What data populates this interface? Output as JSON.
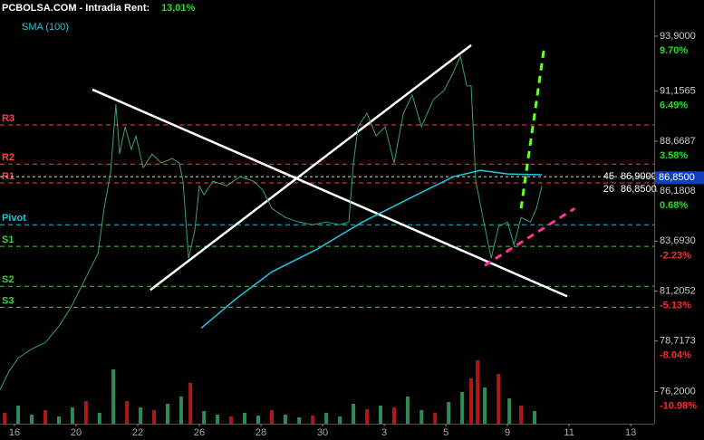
{
  "chart_data": {
    "type": "line",
    "title": "PCBOLSA.COM - Intradia  Rent:",
    "return": "13,01%",
    "xlim": [
      -0.47,
      20.76
    ],
    "xticks": [
      {
        "value": 0,
        "label": "16"
      },
      {
        "value": 2,
        "label": "20"
      },
      {
        "value": 4,
        "label": "22"
      },
      {
        "value": 6,
        "label": "26"
      },
      {
        "value": 8,
        "label": "28"
      },
      {
        "value": 10,
        "label": "30"
      },
      {
        "value": 12,
        "label": "3"
      },
      {
        "value": 14,
        "label": "5"
      },
      {
        "value": 16,
        "label": "9"
      },
      {
        "value": 18,
        "label": "11"
      },
      {
        "value": 20,
        "label": "13"
      }
    ],
    "ylim": [
      74.6,
      95.7
    ],
    "yticks": [
      {
        "value": 93.9,
        "label": "93,9000"
      },
      {
        "value": 91.1565,
        "label": "91,1565"
      },
      {
        "value": 88.6687,
        "label": "88,6687"
      },
      {
        "value": 86.1808,
        "label": "86,1808"
      },
      {
        "value": 83.693,
        "label": "83,6930"
      },
      {
        "value": 81.2052,
        "label": "81,2052"
      },
      {
        "value": 78.7173,
        "label": "78,7173"
      },
      {
        "value": 76.2,
        "label": "76,2000"
      }
    ],
    "y2lim": [
      -12.85,
      11.8
    ],
    "y2ticks": [
      {
        "value": 9.7,
        "label": "9.70%"
      },
      {
        "value": 6.49,
        "label": "6.49%"
      },
      {
        "value": 3.58,
        "label": "3.58%"
      },
      {
        "value": 0.68,
        "label": "0.68%"
      },
      {
        "value": -2.23,
        "label": "-2.23%"
      },
      {
        "value": -5.13,
        "label": "-5.13%"
      },
      {
        "value": -8.04,
        "label": "-8.04%"
      },
      {
        "value": -10.98,
        "label": "-10.98%"
      }
    ],
    "positive_color": "#22dd22",
    "negative_color": "#ff2a2a",
    "series": [
      {
        "color": "#3aa070",
        "x": [
          -0.47,
          -0.18,
          0.12,
          0.56,
          1.0,
          1.44,
          1.82,
          2.12,
          2.41,
          2.71,
          2.91,
          3.12,
          3.29,
          3.41,
          3.59,
          3.79,
          3.94,
          4.18,
          4.47,
          4.76,
          5.12,
          5.35,
          5.47,
          5.65,
          5.85,
          6.0,
          6.15,
          6.44,
          6.88,
          7.32,
          7.76,
          8.06,
          8.35,
          8.79,
          9.24,
          9.68,
          10.12,
          10.56,
          10.85,
          11.0,
          11.15,
          11.44,
          11.74,
          12.03,
          12.32,
          12.62,
          12.91,
          13.21,
          13.59,
          13.94,
          14.24,
          14.47,
          14.68,
          14.82,
          14.97,
          15.26,
          15.47,
          15.71,
          16.0,
          16.21,
          16.44,
          16.74,
          16.94,
          17.12
        ],
        "values": [
          76.29,
          77.2,
          77.87,
          78.32,
          78.64,
          79.45,
          80.36,
          81.26,
          82.16,
          83.06,
          85.32,
          87.13,
          90.51,
          88.03,
          89.39,
          88.26,
          88.93,
          87.35,
          88.03,
          87.58,
          87.81,
          87.58,
          86.68,
          82.84,
          84.19,
          86.45,
          86.0,
          86.68,
          86.45,
          86.9,
          86.68,
          86.23,
          85.32,
          84.87,
          84.64,
          84.51,
          84.64,
          84.51,
          84.64,
          87.58,
          89.39,
          90.06,
          88.93,
          89.39,
          87.58,
          90.06,
          90.97,
          89.39,
          90.74,
          91.19,
          92.09,
          92.91,
          91.42,
          91.42,
          86.68,
          84.42,
          82.84,
          84.42,
          84.64,
          83.52,
          84.87,
          84.64,
          85.32,
          86.45
        ]
      },
      {
        "name": "SMA (100)",
        "color": "#20c8e0",
        "x": [
          6.06,
          7.18,
          8.35,
          9.82,
          11.29,
          13.06,
          14.24,
          15.12,
          16.0,
          17.12
        ],
        "values": [
          79.36,
          80.81,
          82.16,
          83.29,
          84.64,
          86.0,
          86.9,
          87.22,
          87.04,
          87.0
        ]
      }
    ],
    "last_price": {
      "value": 86.85,
      "label": "86,8500",
      "color": "#1040c0"
    },
    "order_book": [
      {
        "size": "45",
        "price": "86,9000",
        "value": 86.9
      },
      {
        "size": "26",
        "price": "86,8500",
        "value": 86.85
      }
    ],
    "levels": [
      {
        "label": "R3",
        "value": 89.48,
        "color": "#ff4040"
      },
      {
        "label": "R2",
        "value": 87.53,
        "color": "#ff4040"
      },
      {
        "label": "R1",
        "value": 86.59,
        "color": "#ff4040"
      },
      {
        "label": "Pivot",
        "value": 84.51,
        "color": "#10c8e0"
      },
      {
        "label": "S1",
        "value": 83.43,
        "color": "#40d040"
      },
      {
        "label": "S2",
        "value": 81.44,
        "color": "#40d040"
      },
      {
        "label": "S3",
        "value": 80.4,
        "color": "#40d040"
      }
    ],
    "trendlines": [
      {
        "x": [
          2.53,
          17.94
        ],
        "y": [
          91.24,
          80.94
        ],
        "color": "#ffffff",
        "dashed": false
      },
      {
        "x": [
          4.41,
          14.82
        ],
        "y": [
          81.26,
          93.45
        ],
        "color": "#ffffff",
        "dashed": false
      },
      {
        "x": [
          16.44,
          17.18
        ],
        "y": [
          85.32,
          93.22
        ],
        "color": "#66ff33",
        "dashed": true
      },
      {
        "x": [
          15.26,
          18.18
        ],
        "y": [
          82.48,
          85.32
        ],
        "color": "#ff3399",
        "dashed": true
      }
    ],
    "volume": {
      "ylim": [
        0,
        100
      ],
      "x": [
        -0.32,
        0.12,
        0.56,
        1.0,
        1.44,
        1.88,
        2.32,
        2.76,
        3.21,
        3.65,
        4.09,
        4.53,
        4.97,
        5.41,
        5.71,
        6.15,
        6.59,
        7.03,
        7.47,
        7.91,
        8.35,
        8.79,
        9.24,
        9.68,
        10.12,
        10.56,
        11.0,
        11.44,
        11.88,
        12.32,
        12.76,
        13.21,
        13.65,
        14.09,
        14.53,
        14.82,
        15.03,
        15.26,
        15.71,
        16.06,
        16.44,
        16.88
      ],
      "values": [
        12,
        20,
        10,
        15,
        8,
        18,
        25,
        12,
        60,
        25,
        18,
        15,
        22,
        30,
        45,
        14,
        10,
        8,
        12,
        9,
        15,
        10,
        7,
        9,
        12,
        8,
        22,
        16,
        20,
        18,
        30,
        15,
        12,
        24,
        35,
        50,
        70,
        40,
        55,
        28,
        20,
        14
      ],
      "colors": [
        "#b01818",
        "#2e8b57",
        "#2e8b57",
        "#b01818",
        "#2e8b57",
        "#2e8b57",
        "#b01818",
        "#2e8b57",
        "#2e8b57",
        "#b01818",
        "#2e8b57",
        "#b01818",
        "#2e8b57",
        "#2e8b57",
        "#b01818",
        "#2e8b57",
        "#2e8b57",
        "#b01818",
        "#2e8b57",
        "#2e8b57",
        "#b01818",
        "#2e8b57",
        "#2e8b57",
        "#b01818",
        "#2e8b57",
        "#2e8b57",
        "#2e8b57",
        "#b01818",
        "#2e8b57",
        "#b01818",
        "#2e8b57",
        "#2e8b57",
        "#b01818",
        "#2e8b57",
        "#2e8b57",
        "#b01818",
        "#b01818",
        "#2e8b57",
        "#b01818",
        "#2e8b57",
        "#b01818",
        "#2e8b57"
      ]
    }
  }
}
